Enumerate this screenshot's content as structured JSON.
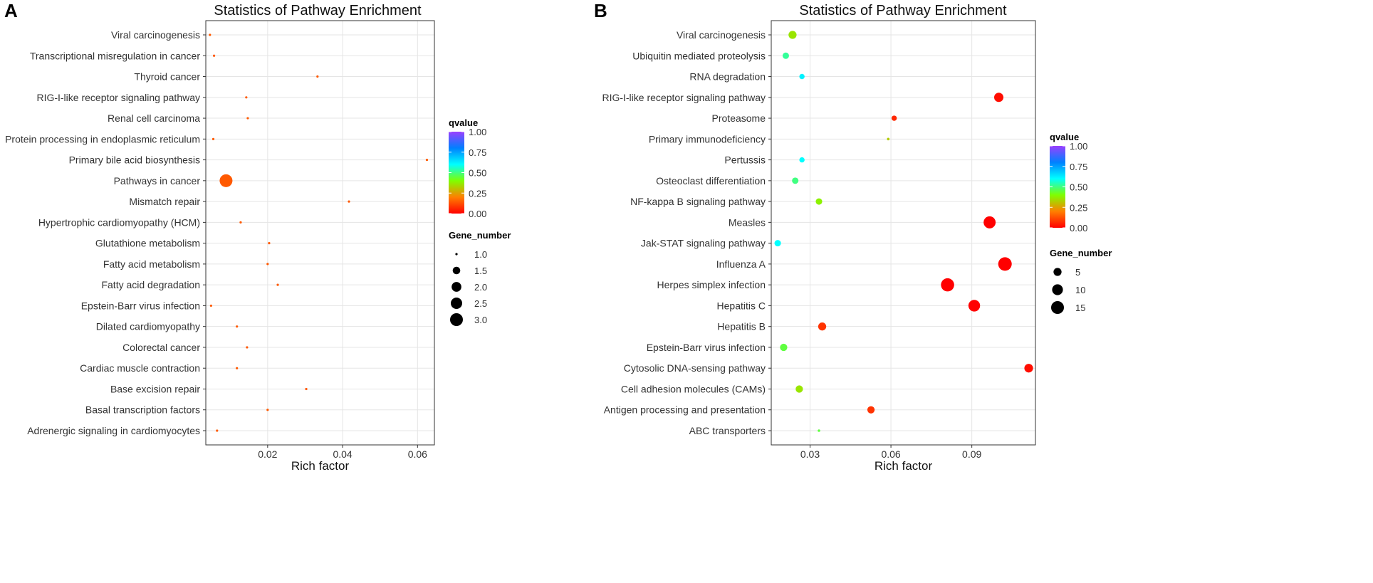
{
  "panels": [
    {
      "letter": "A",
      "chart_data": {
        "type": "scatter",
        "title": "Statistics of Pathway Enrichment",
        "xlabel": "Rich factor",
        "ylabel": "",
        "xlim": [
          0.0035,
          0.0645
        ],
        "xticks": [
          0.02,
          0.04,
          0.06
        ],
        "xtick_labels": [
          "0.02",
          "0.04",
          "0.06"
        ],
        "grid": true,
        "categories": [
          "Viral carcinogenesis",
          "Transcriptional misregulation in cancer",
          "Thyroid cancer",
          "RIG-I-like receptor signaling pathway",
          "Renal cell carcinoma",
          "Protein processing in endoplasmic reticulum",
          "Primary bile acid biosynthesis",
          "Pathways in cancer",
          "Mismatch repair",
          "Hypertrophic cardiomyopathy (HCM)",
          "Glutathione metabolism",
          "Fatty acid metabolism",
          "Fatty acid degradation",
          "Epstein-Barr virus infection",
          "Dilated cardiomyopathy",
          "Colorectal cancer",
          "Cardiac muscle contraction",
          "Base excision repair",
          "Basal transcription factors",
          "Adrenergic signaling in cardiomyocytes"
        ],
        "points": [
          {
            "pathway": "Viral carcinogenesis",
            "rich_factor": 0.0046,
            "gene_number": 1,
            "qvalue": 0.14
          },
          {
            "pathway": "Transcriptional misregulation in cancer",
            "rich_factor": 0.0057,
            "gene_number": 1,
            "qvalue": 0.14
          },
          {
            "pathway": "Thyroid cancer",
            "rich_factor": 0.0333,
            "gene_number": 1,
            "qvalue": 0.14
          },
          {
            "pathway": "RIG-I-like receptor signaling pathway",
            "rich_factor": 0.0143,
            "gene_number": 1,
            "qvalue": 0.14
          },
          {
            "pathway": "Renal cell carcinoma",
            "rich_factor": 0.0147,
            "gene_number": 1,
            "qvalue": 0.14
          },
          {
            "pathway": "Protein processing in endoplasmic reticulum",
            "rich_factor": 0.0055,
            "gene_number": 1,
            "qvalue": 0.14
          },
          {
            "pathway": "Primary bile acid biosynthesis",
            "rich_factor": 0.0625,
            "gene_number": 1,
            "qvalue": 0.14
          },
          {
            "pathway": "Pathways in cancer",
            "rich_factor": 0.0089,
            "gene_number": 3,
            "qvalue": 0.14
          },
          {
            "pathway": "Mismatch repair",
            "rich_factor": 0.0417,
            "gene_number": 1,
            "qvalue": 0.14
          },
          {
            "pathway": "Hypertrophic cardiomyopathy (HCM)",
            "rich_factor": 0.0128,
            "gene_number": 1,
            "qvalue": 0.14
          },
          {
            "pathway": "Glutathione metabolism",
            "rich_factor": 0.0204,
            "gene_number": 1,
            "qvalue": 0.14
          },
          {
            "pathway": "Fatty acid metabolism",
            "rich_factor": 0.02,
            "gene_number": 1,
            "qvalue": 0.14
          },
          {
            "pathway": "Fatty acid degradation",
            "rich_factor": 0.0227,
            "gene_number": 1,
            "qvalue": 0.14
          },
          {
            "pathway": "Epstein-Barr virus infection",
            "rich_factor": 0.0049,
            "gene_number": 1,
            "qvalue": 0.14
          },
          {
            "pathway": "Dilated cardiomyopathy",
            "rich_factor": 0.0118,
            "gene_number": 1,
            "qvalue": 0.14
          },
          {
            "pathway": "Colorectal cancer",
            "rich_factor": 0.0145,
            "gene_number": 1,
            "qvalue": 0.14
          },
          {
            "pathway": "Cardiac muscle contraction",
            "rich_factor": 0.0118,
            "gene_number": 1,
            "qvalue": 0.14
          },
          {
            "pathway": "Base excision repair",
            "rich_factor": 0.0303,
            "gene_number": 1,
            "qvalue": 0.14
          },
          {
            "pathway": "Basal transcription factors",
            "rich_factor": 0.02,
            "gene_number": 1,
            "qvalue": 0.14
          },
          {
            "pathway": "Adrenergic signaling in cardiomyocytes",
            "rich_factor": 0.0065,
            "gene_number": 1,
            "qvalue": 0.14
          }
        ],
        "color_legend": {
          "title": "qvalue",
          "ticks": [
            1.0,
            0.75,
            0.5,
            0.25,
            0.0
          ],
          "tick_labels": [
            "1.00",
            "0.75",
            "0.50",
            "0.25",
            "0.00"
          ]
        },
        "size_legend": {
          "title": "Gene_number",
          "values": [
            1.0,
            1.5,
            2.0,
            2.5,
            3.0
          ],
          "labels": [
            "1.0",
            "1.5",
            "2.0",
            "2.5",
            "3.0"
          ],
          "min": 1,
          "max": 3
        },
        "legend_position": "right"
      }
    },
    {
      "letter": "B",
      "chart_data": {
        "type": "scatter",
        "title": "Statistics of Pathway Enrichment",
        "xlabel": "Rich factor",
        "ylabel": "",
        "xlim": [
          0.0156,
          0.1136
        ],
        "xticks": [
          0.03,
          0.06,
          0.09
        ],
        "xtick_labels": [
          "0.03",
          "0.06",
          "0.09"
        ],
        "grid": true,
        "categories": [
          "Viral carcinogenesis",
          "Ubiquitin mediated proteolysis",
          "RNA degradation",
          "RIG-I-like receptor signaling pathway",
          "Proteasome",
          "Primary immunodeficiency",
          "Pertussis",
          "Osteoclast differentiation",
          "NF-kappa B signaling pathway",
          "Measles",
          "Jak-STAT signaling pathway",
          "Influenza A",
          "Herpes simplex infection",
          "Hepatitis C",
          "Hepatitis B",
          "Epstein-Barr virus infection",
          "Cytosolic DNA-sensing pathway",
          "Cell adhesion molecules (CAMs)",
          "Antigen processing and presentation",
          "ABC transporters"
        ],
        "points": [
          {
            "pathway": "Viral carcinogenesis",
            "rich_factor": 0.0235,
            "gene_number": 5,
            "qvalue": 0.36
          },
          {
            "pathway": "Ubiquitin mediated proteolysis",
            "rich_factor": 0.021,
            "gene_number": 3,
            "qvalue": 0.52
          },
          {
            "pathway": "RNA degradation",
            "rich_factor": 0.027,
            "gene_number": 2,
            "qvalue": 0.62
          },
          {
            "pathway": "RIG-I-like receptor signaling pathway",
            "rich_factor": 0.1,
            "gene_number": 7,
            "qvalue": 0.02
          },
          {
            "pathway": "Proteasome",
            "rich_factor": 0.0612,
            "gene_number": 2,
            "qvalue": 0.06
          },
          {
            "pathway": "Primary immunodeficiency",
            "rich_factor": 0.059,
            "gene_number": 1,
            "qvalue": 0.32
          },
          {
            "pathway": "Pertussis",
            "rich_factor": 0.027,
            "gene_number": 2,
            "qvalue": 0.6
          },
          {
            "pathway": "Osteoclast differentiation",
            "rich_factor": 0.0245,
            "gene_number": 3,
            "qvalue": 0.5
          },
          {
            "pathway": "NF-kappa B signaling pathway",
            "rich_factor": 0.0333,
            "gene_number": 3,
            "qvalue": 0.38
          },
          {
            "pathway": "Measles",
            "rich_factor": 0.0966,
            "gene_number": 13,
            "qvalue": 0.0
          },
          {
            "pathway": "Jak-STAT signaling pathway",
            "rich_factor": 0.018,
            "gene_number": 3,
            "qvalue": 0.6
          },
          {
            "pathway": "Influenza A",
            "rich_factor": 0.1023,
            "gene_number": 17,
            "qvalue": 0.0
          },
          {
            "pathway": "Herpes simplex infection",
            "rich_factor": 0.081,
            "gene_number": 16,
            "qvalue": 0.0
          },
          {
            "pathway": "Hepatitis C",
            "rich_factor": 0.0909,
            "gene_number": 12,
            "qvalue": 0.0
          },
          {
            "pathway": "Hepatitis B",
            "rich_factor": 0.0345,
            "gene_number": 5,
            "qvalue": 0.08
          },
          {
            "pathway": "Epstein-Barr virus infection",
            "rich_factor": 0.0202,
            "gene_number": 4,
            "qvalue": 0.45
          },
          {
            "pathway": "Cytosolic DNA-sensing pathway",
            "rich_factor": 0.1111,
            "gene_number": 6,
            "qvalue": 0.02
          },
          {
            "pathway": "Cell adhesion molecules (CAMs)",
            "rich_factor": 0.026,
            "gene_number": 4,
            "qvalue": 0.36
          },
          {
            "pathway": "Antigen processing and presentation",
            "rich_factor": 0.0526,
            "gene_number": 4,
            "qvalue": 0.08
          },
          {
            "pathway": "ABC transporters",
            "rich_factor": 0.0333,
            "gene_number": 1,
            "qvalue": 0.45
          }
        ],
        "color_legend": {
          "title": "qvalue",
          "ticks": [
            1.0,
            0.75,
            0.5,
            0.25,
            0.0
          ],
          "tick_labels": [
            "1.00",
            "0.75",
            "0.50",
            "0.25",
            "0.00"
          ]
        },
        "size_legend": {
          "title": "Gene_number",
          "values": [
            5,
            10,
            15
          ],
          "labels": [
            "5",
            "10",
            "15"
          ],
          "min": 1,
          "max": 17
        },
        "legend_position": "right"
      }
    }
  ],
  "colors": {
    "panel_border": "#333333",
    "grid": "#e5e5e5",
    "axis_text": "#333333",
    "title_text": "#111111",
    "legend_dot": "#000000",
    "gradient": [
      "#ff0000",
      "#ff7f00",
      "#7fff00",
      "#00ffff",
      "#0080ff",
      "#7f00ff",
      "#9a40ff"
    ]
  }
}
